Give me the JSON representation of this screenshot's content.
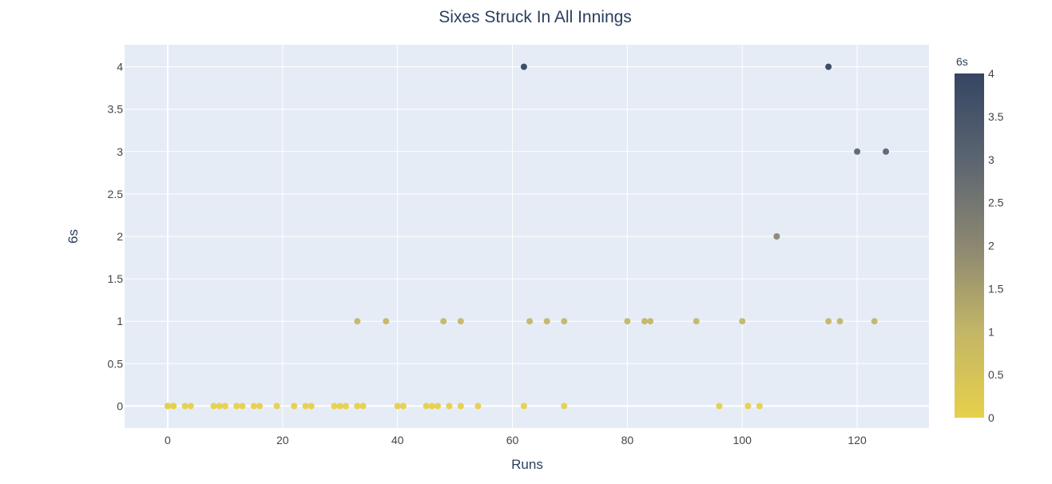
{
  "chart_data": {
    "type": "scatter",
    "title": "Sixes Struck In All Innings",
    "xlabel": "Runs",
    "ylabel": "6s",
    "xlim": [
      -7.5,
      132.5
    ],
    "ylim": [
      -0.26,
      4.26
    ],
    "x_ticks": [
      0,
      20,
      40,
      60,
      80,
      100,
      120
    ],
    "y_ticks": [
      0,
      0.5,
      1,
      1.5,
      2,
      2.5,
      3,
      3.5,
      4
    ],
    "grid": true,
    "colorbar": {
      "title": "6s",
      "min": 0,
      "max": 4,
      "ticks": [
        0,
        0.5,
        1,
        1.5,
        2,
        2.5,
        3,
        3.5,
        4
      ],
      "colorscale": [
        "#e6d04a",
        "#c3b667",
        "#8c8771",
        "#5b6571",
        "#354563"
      ]
    },
    "colors": {
      "plot_background": "#e5ecf6",
      "grid": "#ffffff",
      "text": "#2a3f5f",
      "tick_text": "#444444"
    },
    "points": [
      {
        "x": 0,
        "y": 0
      },
      {
        "x": 0,
        "y": 0
      },
      {
        "x": 1,
        "y": 0
      },
      {
        "x": 1,
        "y": 0
      },
      {
        "x": 3,
        "y": 0
      },
      {
        "x": 4,
        "y": 0
      },
      {
        "x": 8,
        "y": 0
      },
      {
        "x": 9,
        "y": 0
      },
      {
        "x": 10,
        "y": 0
      },
      {
        "x": 12,
        "y": 0
      },
      {
        "x": 13,
        "y": 0
      },
      {
        "x": 15,
        "y": 0
      },
      {
        "x": 16,
        "y": 0
      },
      {
        "x": 19,
        "y": 0
      },
      {
        "x": 22,
        "y": 0
      },
      {
        "x": 24,
        "y": 0
      },
      {
        "x": 25,
        "y": 0
      },
      {
        "x": 29,
        "y": 0
      },
      {
        "x": 30,
        "y": 0
      },
      {
        "x": 31,
        "y": 0
      },
      {
        "x": 33,
        "y": 0
      },
      {
        "x": 34,
        "y": 0
      },
      {
        "x": 40,
        "y": 0
      },
      {
        "x": 41,
        "y": 0
      },
      {
        "x": 45,
        "y": 0
      },
      {
        "x": 46,
        "y": 0
      },
      {
        "x": 47,
        "y": 0
      },
      {
        "x": 49,
        "y": 0
      },
      {
        "x": 51,
        "y": 0
      },
      {
        "x": 54,
        "y": 0
      },
      {
        "x": 62,
        "y": 0
      },
      {
        "x": 69,
        "y": 0
      },
      {
        "x": 96,
        "y": 0
      },
      {
        "x": 101,
        "y": 0
      },
      {
        "x": 103,
        "y": 0
      },
      {
        "x": 33,
        "y": 1
      },
      {
        "x": 38,
        "y": 1
      },
      {
        "x": 48,
        "y": 1
      },
      {
        "x": 51,
        "y": 1
      },
      {
        "x": 63,
        "y": 1
      },
      {
        "x": 66,
        "y": 1
      },
      {
        "x": 69,
        "y": 1
      },
      {
        "x": 80,
        "y": 1
      },
      {
        "x": 83,
        "y": 1
      },
      {
        "x": 84,
        "y": 1
      },
      {
        "x": 92,
        "y": 1
      },
      {
        "x": 100,
        "y": 1
      },
      {
        "x": 115,
        "y": 1
      },
      {
        "x": 117,
        "y": 1
      },
      {
        "x": 123,
        "y": 1
      },
      {
        "x": 106,
        "y": 2
      },
      {
        "x": 120,
        "y": 3
      },
      {
        "x": 125,
        "y": 3
      },
      {
        "x": 62,
        "y": 4
      },
      {
        "x": 115,
        "y": 4
      }
    ]
  }
}
